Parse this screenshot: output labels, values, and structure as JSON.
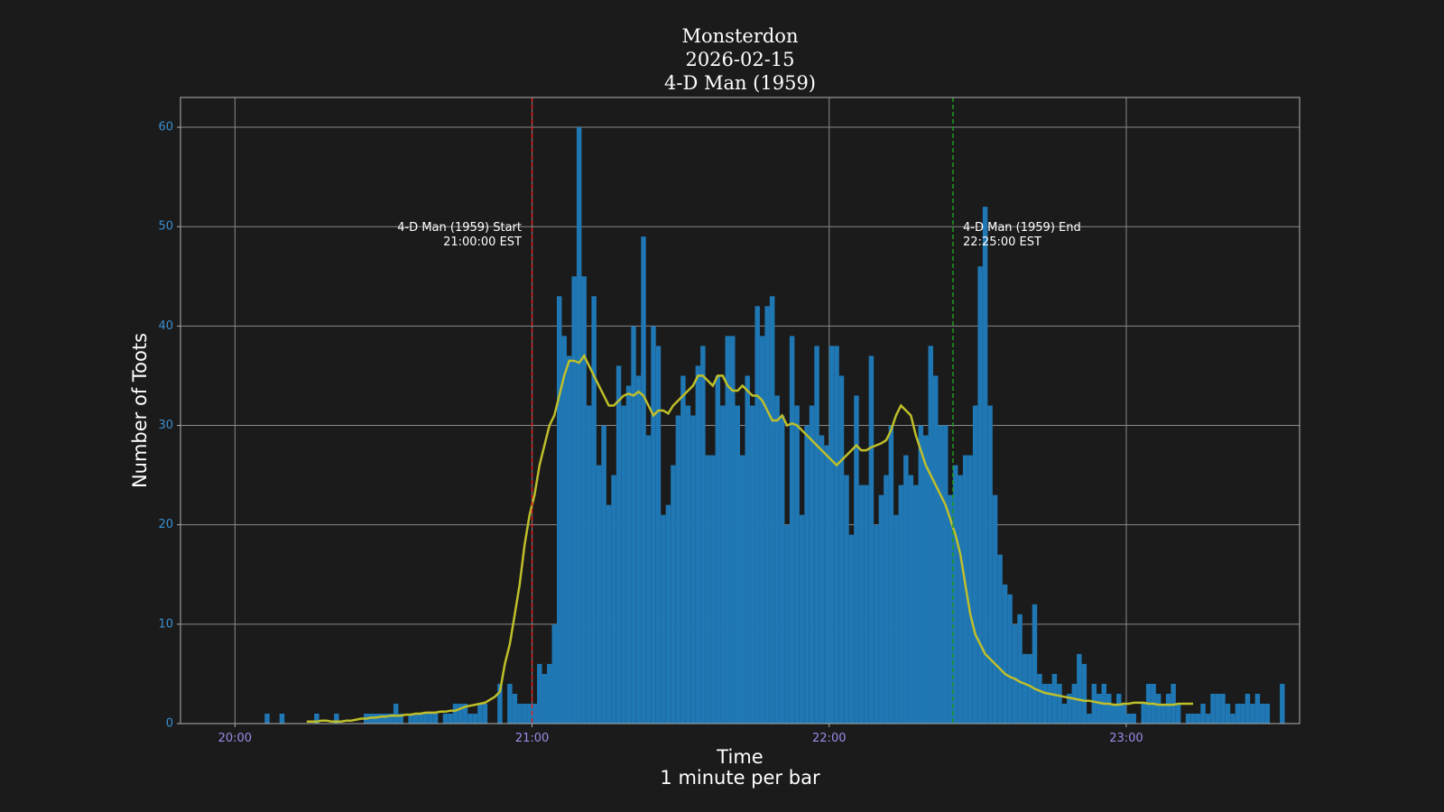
{
  "chart_data": {
    "type": "bar",
    "title_lines": [
      "Monsterdon",
      "2026-02-15",
      "4-D Man (1959)"
    ],
    "xlabel_lines": [
      "Time",
      "1 minute per bar"
    ],
    "ylabel": "Number of Toots",
    "x_start": "20:00",
    "bin_minutes": 1,
    "xlim": [
      "19:49",
      "23:35"
    ],
    "ylim": [
      0,
      63
    ],
    "yticks": [
      0,
      10,
      20,
      30,
      40,
      50,
      60
    ],
    "xticks": [
      {
        "time": "20:00",
        "label": "20:00"
      },
      {
        "time": "21:00",
        "label": "21:00"
      },
      {
        "time": "22:00",
        "label": "22:00"
      },
      {
        "time": "23:00",
        "label": "23:00"
      }
    ],
    "grid": true,
    "colors": {
      "background": "#1b1b1b",
      "plot_background": "#1b1b1b",
      "bars": "#1f77b4",
      "rolling_line": "#bfbf2a",
      "grid": "#8a8a8a",
      "spines": "#b0b0b0",
      "ytick_labels": "#3a8fd0",
      "xtick_labels": "#9a8ce8",
      "start_line": "#e02020",
      "end_line": "#1f9a1f"
    },
    "values": [
      0,
      0,
      0,
      0,
      0,
      0,
      1,
      0,
      0,
      1,
      0,
      0,
      0,
      0,
      0,
      0,
      1,
      0,
      0,
      0,
      1,
      0,
      0,
      0,
      0,
      0,
      1,
      1,
      1,
      1,
      1,
      1,
      2,
      1,
      0,
      1,
      1,
      1,
      1,
      1,
      1,
      0,
      1,
      1,
      2,
      2,
      2,
      1,
      1,
      2,
      2,
      0,
      0,
      4,
      0,
      4,
      3,
      2,
      2,
      2,
      2,
      6,
      5,
      6,
      10,
      43,
      39,
      37,
      45,
      60,
      45,
      32,
      43,
      26,
      30,
      22,
      25,
      36,
      32,
      34,
      40,
      35,
      49,
      29,
      40,
      38,
      21,
      22,
      26,
      31,
      35,
      32,
      31,
      36,
      38,
      27,
      27,
      35,
      32,
      39,
      39,
      32,
      27,
      35,
      32,
      42,
      39,
      42,
      43,
      33,
      31,
      20,
      39,
      32,
      21,
      30,
      32,
      38,
      29,
      28,
      38,
      38,
      35,
      25,
      19,
      33,
      24,
      24,
      37,
      20,
      23,
      25,
      30,
      21,
      24,
      27,
      25,
      24,
      30,
      29,
      38,
      35,
      30,
      30,
      23,
      26,
      25,
      27,
      27,
      32,
      46,
      52,
      32,
      23,
      17,
      14,
      13,
      10,
      11,
      7,
      7,
      12,
      5,
      4,
      4,
      5,
      4,
      2,
      3,
      4,
      7,
      6,
      1,
      4,
      3,
      4,
      3,
      2,
      3,
      2,
      1,
      1,
      0,
      2,
      4,
      4,
      3,
      2,
      3,
      4,
      2,
      0,
      1,
      1,
      1,
      2,
      1,
      3,
      3,
      3,
      2,
      1,
      2,
      2,
      3,
      2,
      3,
      2,
      2,
      0,
      0,
      4
    ],
    "rolling_mean": {
      "start_minute": 14,
      "values": [
        0.2,
        0.2,
        0.2,
        0.3,
        0.3,
        0.2,
        0.2,
        0.2,
        0.3,
        0.3,
        0.4,
        0.5,
        0.5,
        0.6,
        0.6,
        0.7,
        0.7,
        0.8,
        0.8,
        0.8,
        0.9,
        0.9,
        1.0,
        1.0,
        1.1,
        1.1,
        1.1,
        1.2,
        1.2,
        1.3,
        1.3,
        1.5,
        1.7,
        1.8,
        1.9,
        2.0,
        2.1,
        2.4,
        2.7,
        3.2,
        6.0,
        8.0,
        11.0,
        14.0,
        18.0,
        21.0,
        23.0,
        26.0,
        28.0,
        30.0,
        31.0,
        33.0,
        35.0,
        36.5,
        36.5,
        36.3,
        37.0,
        36.0,
        35.0,
        34.0,
        33.0,
        32.0,
        32.0,
        32.5,
        33.0,
        33.2,
        33.0,
        33.4,
        33.0,
        32.0,
        31.0,
        31.5,
        31.5,
        31.2,
        32.0,
        32.5,
        33.0,
        33.5,
        34.0,
        35.0,
        35.0,
        34.5,
        34.0,
        35.0,
        35.0,
        34.0,
        33.5,
        33.5,
        34.0,
        33.5,
        33.0,
        33.0,
        32.5,
        31.5,
        30.5,
        30.5,
        31.0,
        30.0,
        30.2,
        30.0,
        29.5,
        29.0,
        28.5,
        28.0,
        27.5,
        27.0,
        26.5,
        26.0,
        26.5,
        27.0,
        27.5,
        28.0,
        27.5,
        27.5,
        27.8,
        28.0,
        28.2,
        28.5,
        29.5,
        31.0,
        32.0,
        31.5,
        31.0,
        29.0,
        27.5,
        26.0,
        25.0,
        24.0,
        23.0,
        22.0,
        20.5,
        19.0,
        17.0,
        14.0,
        11.0,
        9.0,
        8.0,
        7.0,
        6.5,
        6.0,
        5.5,
        5.0,
        4.7,
        4.5,
        4.2,
        4.0,
        3.8,
        3.5,
        3.3,
        3.1,
        3.0,
        2.9,
        2.8,
        2.7,
        2.6,
        2.5,
        2.4,
        2.3,
        2.3,
        2.2,
        2.1,
        2.0,
        2.0,
        1.9,
        1.9,
        2.0,
        2.0,
        2.1,
        2.1,
        2.1,
        2.0,
        2.0,
        1.9,
        1.9,
        1.9,
        1.9,
        2.0,
        2.0,
        2.0,
        2.0
      ]
    },
    "vlines": [
      {
        "time": "21:00",
        "name": "start",
        "text_lines": [
          "4-D Man (1959) Start",
          "21:00:00 EST"
        ]
      },
      {
        "time": "22:25",
        "name": "end",
        "text_lines": [
          "4-D Man (1959) End",
          "22:25:00 EST"
        ]
      }
    ]
  }
}
